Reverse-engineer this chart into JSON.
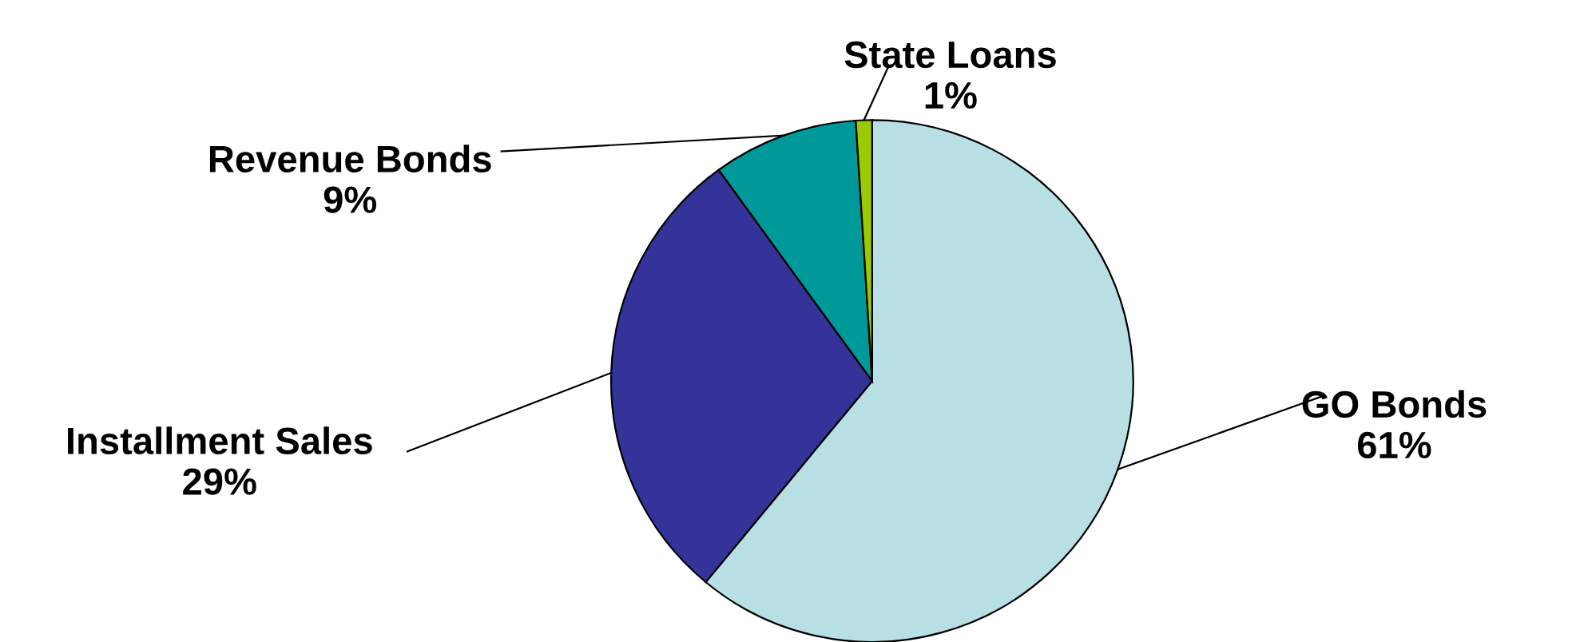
{
  "chart_data": {
    "type": "pie",
    "categories": [
      "GO Bonds",
      "Installment Sales",
      "Revenue Bonds",
      "State Loans"
    ],
    "values": [
      61,
      29,
      9,
      1
    ],
    "colors": [
      "#b8e0e4",
      "#333399",
      "#009999",
      "#99cc00"
    ],
    "value_labels": [
      "61%",
      "29%",
      "9%",
      "1%"
    ]
  }
}
